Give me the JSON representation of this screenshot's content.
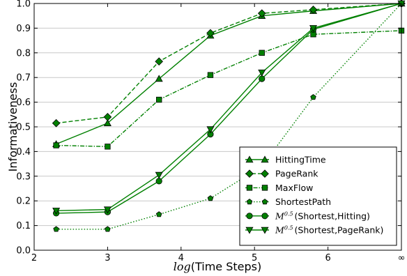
{
  "chart_data": {
    "type": "line",
    "xlabel_math": "log",
    "xlabel": "Time Steps",
    "ylabel": "Informativeness",
    "xlim": [
      2,
      7
    ],
    "ylim": [
      0,
      1
    ],
    "x_ticks": [
      {
        "value": 2,
        "label": "2"
      },
      {
        "value": 3,
        "label": "3"
      },
      {
        "value": 4,
        "label": "4"
      },
      {
        "value": 5,
        "label": "5"
      },
      {
        "value": 6,
        "label": "6"
      },
      {
        "value": 7,
        "label": "∞"
      }
    ],
    "y_ticks": [
      {
        "value": 0.0,
        "label": "0.0"
      },
      {
        "value": 0.1,
        "label": "0.1"
      },
      {
        "value": 0.2,
        "label": "0.2"
      },
      {
        "value": 0.3,
        "label": "0.3"
      },
      {
        "value": 0.4,
        "label": "0.4"
      },
      {
        "value": 0.5,
        "label": "0.5"
      },
      {
        "value": 0.6,
        "label": "0.6"
      },
      {
        "value": 0.7,
        "label": "0.7"
      },
      {
        "value": 0.8,
        "label": "0.8"
      },
      {
        "value": 0.9,
        "label": "0.9"
      },
      {
        "value": 1.0,
        "label": "1.0"
      }
    ],
    "grid": {
      "horizontal": true,
      "vertical": false
    },
    "legend_position": "lower-right",
    "color": "#008000",
    "series": [
      {
        "name": "HittingTime",
        "marker": "triangle-up",
        "line": "solid",
        "x": [
          2.3,
          3,
          3.7,
          4.4,
          5.1,
          5.8,
          7
        ],
        "y": [
          0.43,
          0.515,
          0.695,
          0.87,
          0.95,
          0.97,
          1.0
        ]
      },
      {
        "name": "PageRank",
        "marker": "diamond",
        "line": "dashed",
        "x": [
          2.3,
          3,
          3.7,
          4.4,
          5.1,
          5.8,
          7
        ],
        "y": [
          0.515,
          0.54,
          0.765,
          0.88,
          0.96,
          0.975,
          1.0
        ]
      },
      {
        "name": "MaxFlow",
        "marker": "square",
        "line": "dashdot",
        "x": [
          2.3,
          3,
          3.7,
          4.4,
          5.1,
          5.8,
          7
        ],
        "y": [
          0.425,
          0.42,
          0.61,
          0.71,
          0.8,
          0.875,
          0.89
        ]
      },
      {
        "name": "ShortestPath",
        "marker": "pentagon",
        "line": "dotted",
        "x": [
          2.3,
          3,
          3.7,
          4.4,
          5.1,
          5.8,
          7
        ],
        "y": [
          0.085,
          0.085,
          0.145,
          0.21,
          0.34,
          0.62,
          1.0
        ]
      },
      {
        "name": "(Shortest,Hitting)",
        "name_math": "M",
        "name_sup": "0.5",
        "marker": "circle",
        "line": "solid",
        "x": [
          2.3,
          3,
          3.7,
          4.4,
          5.1,
          5.8,
          7
        ],
        "y": [
          0.15,
          0.155,
          0.28,
          0.47,
          0.695,
          0.895,
          1.0
        ]
      },
      {
        "name": "(Shortest,PageRank)",
        "name_math": "M",
        "name_sup": "0.5",
        "marker": "triangle-down",
        "line": "solid",
        "x": [
          2.3,
          3,
          3.7,
          4.4,
          5.1,
          5.8,
          7
        ],
        "y": [
          0.16,
          0.165,
          0.305,
          0.49,
          0.72,
          0.9,
          1.0
        ]
      }
    ]
  }
}
